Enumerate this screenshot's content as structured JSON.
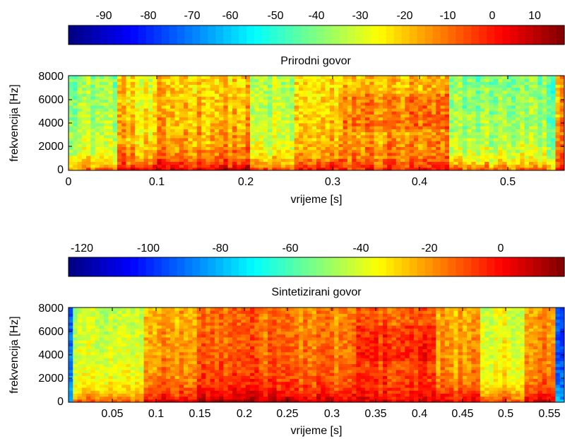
{
  "chart_data": [
    {
      "type": "heatmap",
      "title": "Prirodni govor",
      "xlabel": "vrijeme [s]",
      "ylabel": "frekvencija [Hz]",
      "xlim": [
        0,
        0.56
      ],
      "ylim": [
        0,
        8000
      ],
      "x_ticks": [
        "0",
        "0.1",
        "0.2",
        "0.3",
        "0.4",
        "0.5"
      ],
      "y_ticks": [
        "0",
        "2000",
        "4000",
        "6000",
        "8000"
      ],
      "colorbar": {
        "position": "top",
        "range": [
          -97,
          16
        ],
        "ticks": [
          "-90",
          "-80",
          "-70",
          "-60",
          "-50",
          "-40",
          "-30",
          "-20",
          "-10",
          "0",
          "10"
        ]
      },
      "colormap": "jet",
      "segments": [
        {
          "t0": 0.0,
          "t1": 0.055,
          "level": -32,
          "low": -8
        },
        {
          "t0": 0.055,
          "t1": 0.075,
          "level": -17,
          "low": 4
        },
        {
          "t0": 0.075,
          "t1": 0.1,
          "level": -24,
          "low": 3
        },
        {
          "t0": 0.1,
          "t1": 0.205,
          "level": -15,
          "low": 9
        },
        {
          "t0": 0.205,
          "t1": 0.255,
          "level": -31,
          "low": -3
        },
        {
          "t0": 0.255,
          "t1": 0.31,
          "level": -19,
          "low": 2
        },
        {
          "t0": 0.31,
          "t1": 0.43,
          "level": -14,
          "low": -1
        },
        {
          "t0": 0.43,
          "t1": 0.54,
          "level": -34,
          "low": -7
        },
        {
          "t0": 0.54,
          "t1": 0.552,
          "level": -44,
          "low": -16
        },
        {
          "t0": 0.552,
          "t1": 0.56,
          "level": -12,
          "low": 4
        }
      ]
    },
    {
      "type": "heatmap",
      "title": "Sintetizirani govor",
      "xlabel": "vrijeme [s]",
      "ylabel": "frekvencija [Hz]",
      "xlim": [
        0,
        0.565
      ],
      "ylim": [
        0,
        8000
      ],
      "x_ticks": [
        "0.05",
        "0.1",
        "0.15",
        "0.2",
        "0.25",
        "0.3",
        "0.35",
        "0.4",
        "0.45",
        "0.5",
        "0.55"
      ],
      "y_ticks": [
        "0",
        "2000",
        "4000",
        "6000",
        "8000"
      ],
      "colorbar": {
        "position": "top",
        "range": [
          -128,
          14
        ],
        "ticks": [
          "-120",
          "-100",
          "-80",
          "-60",
          "-40",
          "-20",
          "0"
        ]
      },
      "colormap": "jet",
      "segments": [
        {
          "t0": 0.0,
          "t1": 0.005,
          "level": -92,
          "low": -80
        },
        {
          "t0": 0.005,
          "t1": 0.085,
          "level": -42,
          "low": -14
        },
        {
          "t0": 0.085,
          "t1": 0.145,
          "level": -22,
          "low": 2
        },
        {
          "t0": 0.145,
          "t1": 0.25,
          "level": -13,
          "low": 10
        },
        {
          "t0": 0.25,
          "t1": 0.33,
          "level": -17,
          "low": 3
        },
        {
          "t0": 0.33,
          "t1": 0.42,
          "level": -12,
          "low": 2
        },
        {
          "t0": 0.42,
          "t1": 0.47,
          "level": -23,
          "low": 0
        },
        {
          "t0": 0.47,
          "t1": 0.52,
          "level": -38,
          "low": -10
        },
        {
          "t0": 0.52,
          "t1": 0.555,
          "level": -20,
          "low": 2
        },
        {
          "t0": 0.555,
          "t1": 0.565,
          "level": -92,
          "low": -80
        }
      ]
    }
  ]
}
